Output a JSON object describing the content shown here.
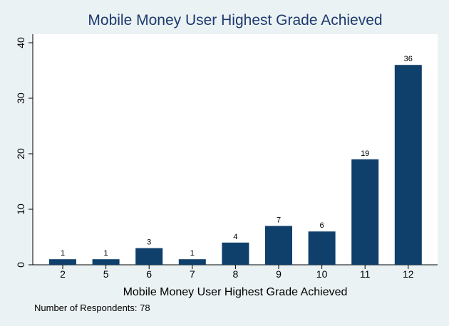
{
  "chart_data": {
    "type": "bar",
    "title": "Mobile Money User Highest Grade Achieved",
    "xlabel": "Mobile Money User Highest Grade Achieved",
    "ylabel": "",
    "categories": [
      "2",
      "5",
      "6",
      "7",
      "8",
      "9",
      "10",
      "11",
      "12"
    ],
    "values": [
      1,
      1,
      3,
      1,
      4,
      7,
      6,
      19,
      36
    ],
    "data_labels": [
      "1",
      "1",
      "3",
      "1",
      "4",
      "7",
      "6",
      "19",
      "36"
    ],
    "ylim": [
      0,
      40
    ],
    "yticks": [
      "0",
      "10",
      "20",
      "30",
      "40"
    ],
    "ytick_values": [
      0,
      10,
      20,
      30,
      40
    ],
    "grid": false,
    "legend": "none",
    "note": "Number of Respondents: 78",
    "colors": {
      "bar": "#0f3f6b",
      "background": "#eaf2f3",
      "plot_area": "#ffffff",
      "title": "#1e3a6e"
    }
  }
}
